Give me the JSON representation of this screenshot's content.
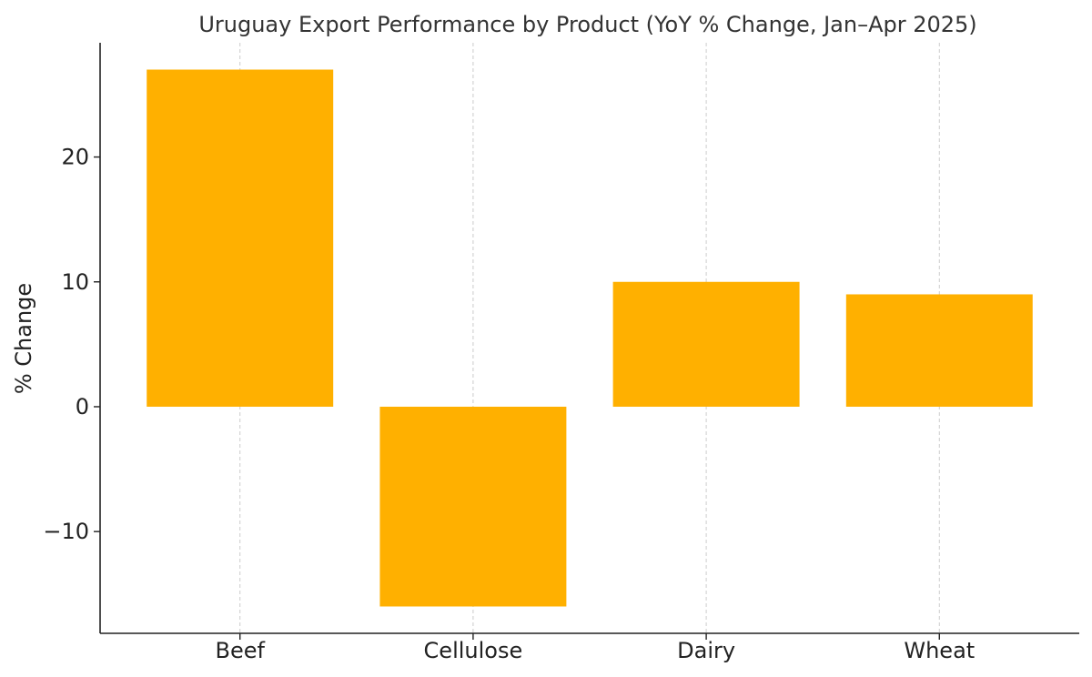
{
  "chart_data": {
    "type": "bar",
    "title": "Uruguay Export Performance by Product (YoY % Change, Jan–Apr 2025)",
    "xlabel": "",
    "ylabel": "% Change",
    "categories": [
      "Beef",
      "Cellulose",
      "Dairy",
      "Wheat"
    ],
    "values": [
      27,
      -16,
      10,
      9
    ],
    "ylim": [
      -18.15,
      29.15
    ],
    "yticks": [
      -10,
      0,
      10,
      20
    ],
    "ytick_labels": [
      "−10",
      "0",
      "10",
      "20"
    ],
    "grid": "vertical dashed at categories",
    "legend": "none",
    "colors": {
      "bar": "#FFB000",
      "grid": "#cccccc",
      "axis": "#222222",
      "text": "#222222"
    }
  }
}
